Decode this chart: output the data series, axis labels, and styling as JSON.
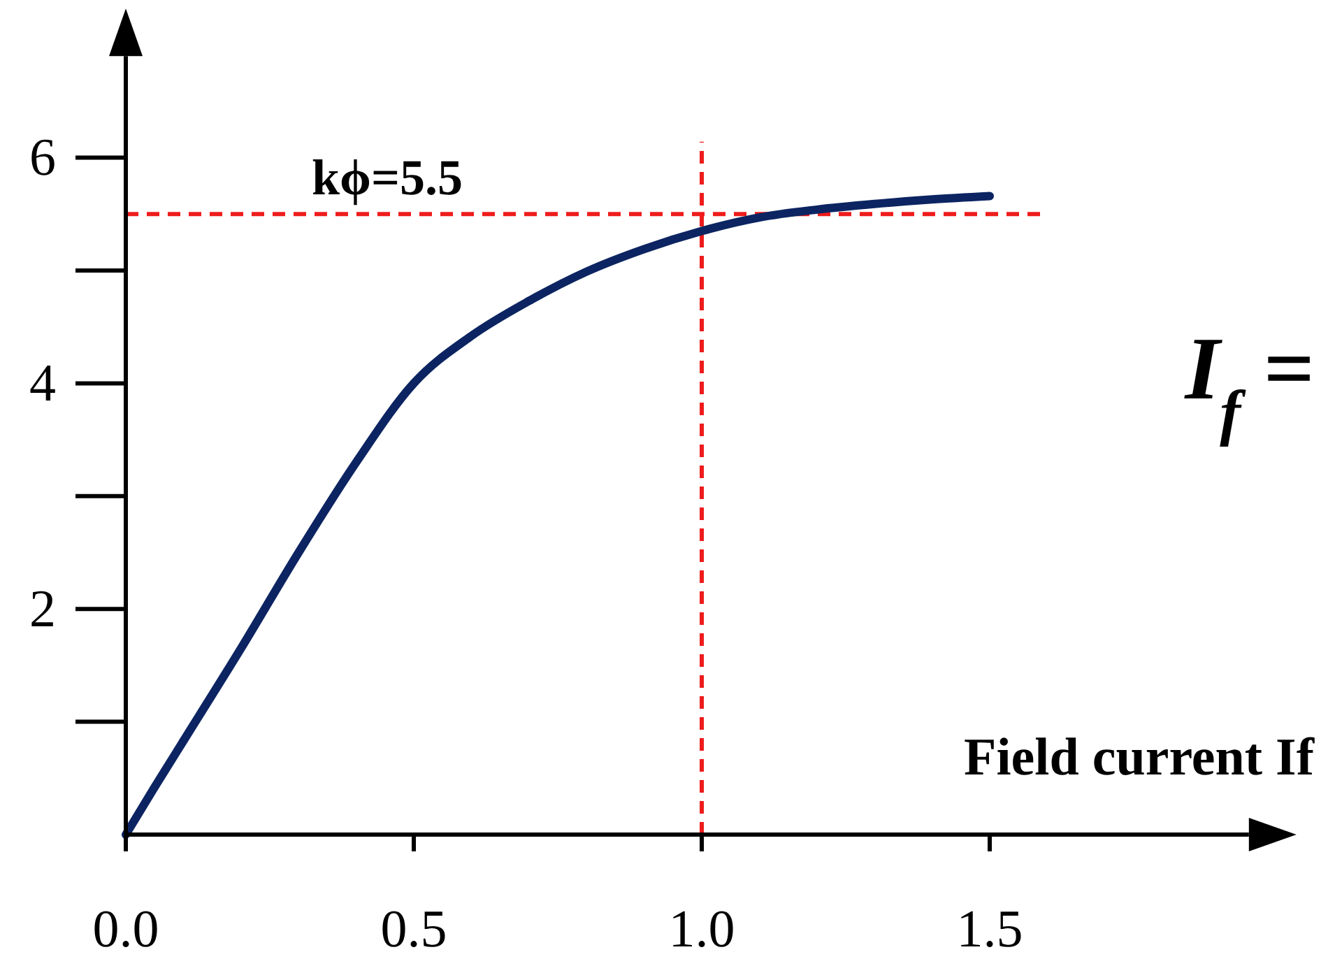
{
  "chart_data": {
    "type": "line",
    "xlabel": "Field current If",
    "x": [
      0,
      0.05,
      0.1,
      0.2,
      0.3,
      0.4,
      0.5,
      0.6,
      0.7,
      0.8,
      0.9,
      1.0,
      1.1,
      1.2,
      1.3,
      1.4,
      1.5
    ],
    "series": [
      {
        "color": "#0c2461",
        "values": [
          0,
          0.42,
          0.83,
          1.65,
          2.5,
          3.3,
          4.0,
          4.42,
          4.73,
          4.99,
          5.19,
          5.35,
          5.47,
          5.54,
          5.59,
          5.63,
          5.66
        ]
      }
    ],
    "xlim": [
      0,
      1.95
    ],
    "ylim": [
      0,
      6.9
    ],
    "xticks": [
      {
        "value": 0,
        "label": "0.0"
      },
      {
        "value": 0.5,
        "label": "0.5"
      },
      {
        "value": 1,
        "label": "1.0"
      },
      {
        "value": 1.5,
        "label": "1.5"
      }
    ],
    "yticks": [
      2,
      4,
      6
    ],
    "ref_lines": [
      {
        "axis": "y",
        "value": 5.5,
        "label": "kϕ=5.5",
        "color": "#ee1c1c",
        "line_style": "dashed"
      },
      {
        "axis": "x",
        "value": 1,
        "label": null,
        "color": "#ee1c1c",
        "line_style": "dashed"
      }
    ],
    "annotations": [
      "I$_{f}$ ="
    ],
    "grid": false,
    "marker": "none",
    "line_style": "solid"
  }
}
